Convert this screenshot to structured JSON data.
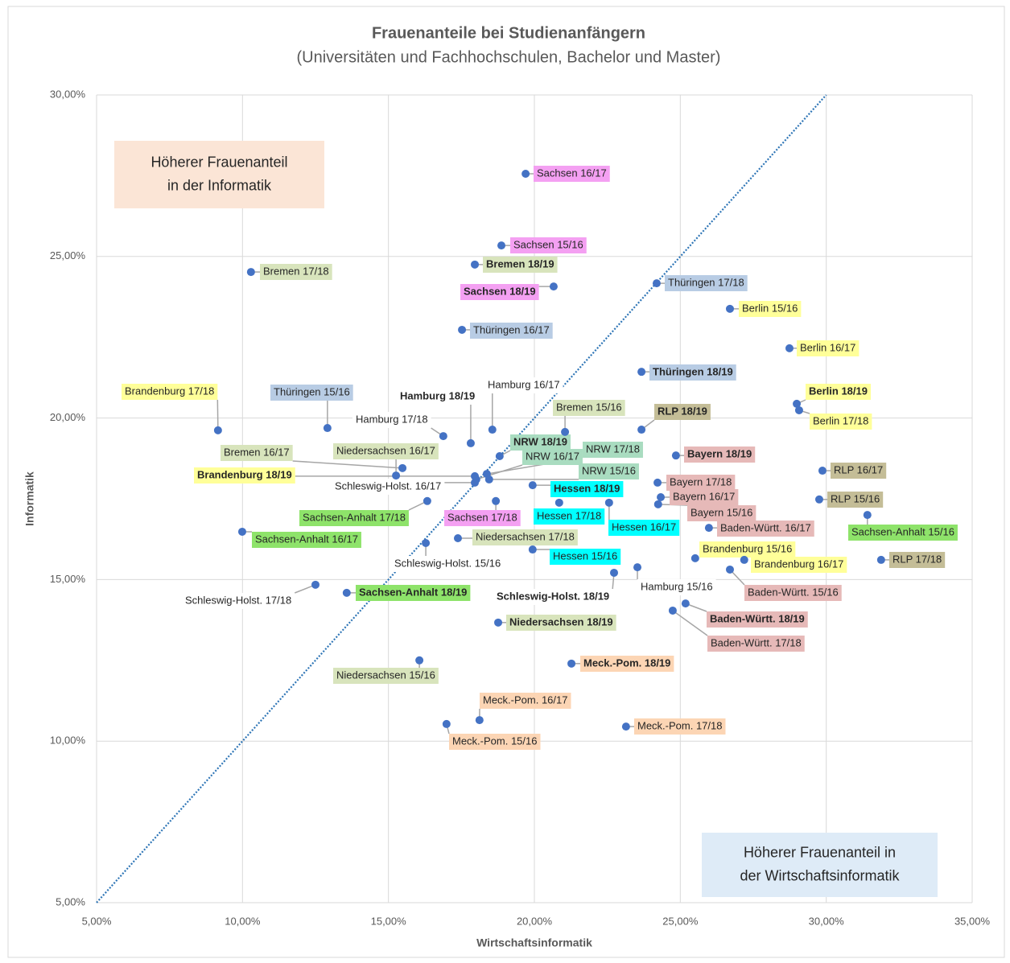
{
  "chart_data": {
    "type": "scatter",
    "title": "Frauenanteile bei Studienanfängern",
    "subtitle": "(Universitäten und Fachhochschulen,  Bachelor und Master)",
    "x_label": "Wirtschaftsinformatik",
    "y_label": "Informatik",
    "xlim": [
      5,
      35
    ],
    "ylim": [
      5,
      30
    ],
    "xticks": [
      {
        "value": 5,
        "label": "5,00%"
      },
      {
        "value": 10,
        "label": "10,00%"
      },
      {
        "value": 15,
        "label": "15,00%"
      },
      {
        "value": 20,
        "label": "20,00%"
      },
      {
        "value": 25,
        "label": "25,00%"
      },
      {
        "value": 30,
        "label": "30,00%"
      },
      {
        "value": 35,
        "label": "35,00%"
      }
    ],
    "yticks": [
      {
        "value": 5,
        "label": "5,00%"
      },
      {
        "value": 10,
        "label": "10,00%"
      },
      {
        "value": 15,
        "label": "15,00%"
      },
      {
        "value": 20,
        "label": "20,00%"
      },
      {
        "value": 25,
        "label": "25,00%"
      },
      {
        "value": 30,
        "label": "30,00%"
      }
    ],
    "grid": true,
    "color": "#4472c4",
    "point_labels": [
      "Sachsen 16/17",
      "Sachsen 15/16",
      "Bremen 18/19",
      "Sachsen 18/19",
      "Bremen 17/18",
      "Thüringen 17/18",
      "Berlin 15/16",
      "Thüringen 16/17",
      "Berlin 16/17",
      "Thüringen 18/19",
      "Berlin 18/19",
      "Berlin 17/18",
      "RLP 18/19",
      "Brandenburg 17/18",
      "Thüringen 15/16",
      "Hamburg 18/19",
      "Hamburg 16/17",
      "Bremen 15/16",
      "Hamburg 17/18",
      "NRW 18/19",
      "NRW 17/18",
      "NRW 16/17",
      "NRW 15/16",
      "Bremen 16/17",
      "Niedersachsen 16/17",
      "Brandenburg 18/19",
      "Schleswig-Holst. 16/17",
      "Bayern 18/19",
      "RLP 16/17",
      "Hessen 18/19",
      "Bayern 17/18",
      "Bayern 16/17",
      "Bayern 15/16",
      "RLP 15/16",
      "Sachsen-Anhalt 17/18",
      "Sachsen 17/18",
      "Hessen 17/18",
      "Hessen 16/17",
      "Baden-Württ. 16/17",
      "Sachsen-Anhalt 15/16",
      "Sachsen-Anhalt 16/17",
      "Niedersachsen 17/18",
      "Schleswig-Holst. 15/16",
      "Hessen 15/16",
      "Brandenburg 15/16",
      "Brandenburg 16/17",
      "RLP 17/18",
      "Hamburg 15/16",
      "Baden-Württ. 15/16",
      "Schleswig-Holst. 18/19",
      "Schleswig-Holst. 17/18",
      "Sachsen-Anhalt 18/19",
      "Baden-Württ. 18/19",
      "Baden-Württ. 17/18",
      "Niedersachsen 18/19",
      "Niedersachsen 15/16",
      "Meck.-Pom. 18/19",
      "Meck.-Pom. 16/17",
      "Meck.-Pom. 15/16",
      "Meck.-Pom. 17/18"
    ],
    "x": [
      19.7,
      18.87,
      17.96,
      20.66,
      10.29,
      24.19,
      26.7,
      17.52,
      28.74,
      23.67,
      28.99,
      29.07,
      23.67,
      9.16,
      12.91,
      17.82,
      18.56,
      21.05,
      16.88,
      18.81,
      18.37,
      18.01,
      18.45,
      15.48,
      15.26,
      17.96,
      17.96,
      24.85,
      29.87,
      19.94,
      24.22,
      24.33,
      24.24,
      29.76,
      16.33,
      18.68,
      20.85,
      22.56,
      25.98,
      31.41,
      9.99,
      17.38,
      16.28,
      19.94,
      25.51,
      27.19,
      31.88,
      23.53,
      26.7,
      22.73,
      12.5,
      13.57,
      25.18,
      24.74,
      18.76,
      16.06,
      21.27,
      18.12,
      16.99,
      23.14
    ],
    "values": [
      27.56,
      25.34,
      24.75,
      24.07,
      24.52,
      24.17,
      23.38,
      22.73,
      22.16,
      21.43,
      20.44,
      20.24,
      19.64,
      19.62,
      19.69,
      19.22,
      19.64,
      19.57,
      19.44,
      18.82,
      18.27,
      18.1,
      18.1,
      18.45,
      18.22,
      18.2,
      18.0,
      18.84,
      18.37,
      17.92,
      18.0,
      17.55,
      17.33,
      17.48,
      17.43,
      17.43,
      17.38,
      17.38,
      16.6,
      17.0,
      16.48,
      16.28,
      16.13,
      15.93,
      15.66,
      15.61,
      15.61,
      15.38,
      15.31,
      15.21,
      14.84,
      14.59,
      14.26,
      14.04,
      13.67,
      12.5,
      12.4,
      10.65,
      10.53,
      10.45
    ],
    "label_colors": [
      "#f4a0f2",
      "#f4a0f2",
      "#d8e4bc",
      "#f4a0f2",
      "#d8e4bc",
      "#b8cce4",
      "#ffff99",
      "#b8cce4",
      "#ffff99",
      "#b8cce4",
      "#ffff99",
      "#ffff99",
      "#c4bd97",
      "#ffff99",
      "#b8cce4",
      "#ffffff",
      "#ffffff",
      "#d8e4bc",
      "#ffffff",
      "#a9dcc0",
      "#a9dcc0",
      "#a9dcc0",
      "#a9dcc0",
      "#d8e4bc",
      "#d8e4bc",
      "#ffff99",
      "#ffffff",
      "#e6b9b8",
      "#c4bd97",
      "#00ffff",
      "#e6b9b8",
      "#e6b9b8",
      "#e6b9b8",
      "#c4bd97",
      "#8ee36a",
      "#f4a0f2",
      "#00ffff",
      "#00ffff",
      "#e6b9b8",
      "#8ee36a",
      "#8ee36a",
      "#d8e4bc",
      "#ffffff",
      "#00ffff",
      "#ffff99",
      "#ffff99",
      "#c4bd97",
      "#ffffff",
      "#e6b9b8",
      "#ffffff",
      "#ffffff",
      "#8ee36a",
      "#e6b9b8",
      "#e6b9b8",
      "#d8e4bc",
      "#d8e4bc",
      "#fcd5b4",
      "#fcd5b4",
      "#fcd5b4",
      "#fcd5b4"
    ],
    "label_bold": [
      false,
      false,
      true,
      true,
      false,
      false,
      false,
      false,
      false,
      true,
      true,
      false,
      true,
      false,
      false,
      true,
      false,
      false,
      false,
      true,
      false,
      false,
      false,
      false,
      false,
      true,
      false,
      true,
      false,
      true,
      false,
      false,
      false,
      false,
      false,
      false,
      false,
      false,
      false,
      false,
      false,
      false,
      false,
      false,
      false,
      false,
      false,
      false,
      false,
      true,
      false,
      true,
      true,
      false,
      true,
      false,
      true,
      false,
      false,
      false
    ],
    "reference_line": {
      "x": [
        5,
        30
      ],
      "y": [
        5,
        30
      ],
      "color": "#2e75b6"
    },
    "annotations": [
      {
        "lines": [
          "Höherer Frauenanteil",
          "in der Informatik"
        ],
        "color": "#fbe5d6"
      },
      {
        "lines": [
          "Höherer Frauenanteil in",
          "der Wirtschaftsinformatik"
        ],
        "color": "#deebf7"
      }
    ]
  }
}
